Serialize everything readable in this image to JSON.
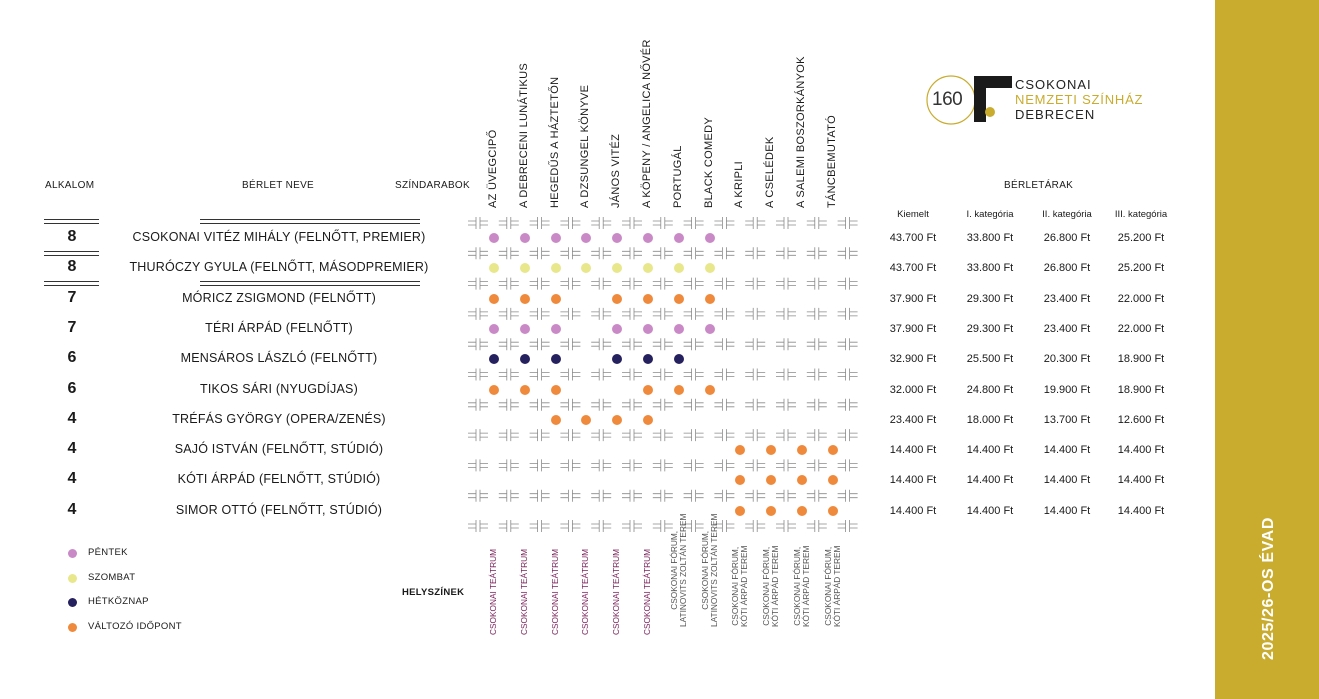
{
  "season": "2025/26-OS ÉVAD",
  "colors": {
    "friday": "#c989c6",
    "saturday": "#e8e78c",
    "weekday": "#25205e",
    "variable": "#ef8a3c",
    "venue_teatrum": "#7a1f5a",
    "venue_other": "#555555",
    "gold": "#c9ac2e"
  },
  "logo": {
    "number": "160",
    "line1": "CSOKONAI",
    "line2": "NEMZETI SZÍNHÁZ",
    "line3": "DEBRECEN"
  },
  "headers": {
    "alkalom": "ALKALOM",
    "berlet_neve": "BÉRLET NEVE",
    "szindarabok": "SZÍNDARABOK",
    "berletarak": "BÉRLETÁRAK",
    "helyszinek": "HELYSZÍNEK"
  },
  "price_categories": [
    "Kiemelt",
    "I. kategória",
    "II. kategória",
    "III. kategória"
  ],
  "plays": [
    {
      "title": "AZ ÜVEGCIPŐ",
      "venue": "CSOKONAI TEÁTRUM",
      "venue_type": "teatrum"
    },
    {
      "title": "A DEBRECENI LUNÁTIKUS",
      "venue": "CSOKONAI TEÁTRUM",
      "venue_type": "teatrum"
    },
    {
      "title": "HEGEDŰS A HÁZTETŐN",
      "venue": "CSOKONAI TEÁTRUM",
      "venue_type": "teatrum"
    },
    {
      "title": "A DZSUNGEL KÖNYVE",
      "venue": "CSOKONAI TEÁTRUM",
      "venue_type": "teatrum"
    },
    {
      "title": "JÁNOS VITÉZ",
      "venue": "CSOKONAI TEÁTRUM",
      "venue_type": "teatrum"
    },
    {
      "title": "A KÖPENY / ANGELICA NŐVÉR",
      "venue": "CSOKONAI TEÁTRUM",
      "venue_type": "teatrum"
    },
    {
      "title": "PORTUGÁL",
      "venue": "CSOKONAI FÓRUM,|LATINOVITS ZOLTÁN TEREM",
      "venue_type": "other"
    },
    {
      "title": "BLACK COMEDY",
      "venue": "CSOKONAI FÓRUM,|LATINOVITS ZOLTÁN TEREM",
      "venue_type": "other"
    },
    {
      "title": "A KRIPLI",
      "venue": "CSOKONAI FÓRUM,|KÓTI ÁRPÁD TEREM",
      "venue_type": "other"
    },
    {
      "title": "A CSELÉDEK",
      "venue": "CSOKONAI FÓRUM,|KÓTI ÁRPÁD TEREM",
      "venue_type": "other"
    },
    {
      "title": "A SALEMI BOSZORKÁNYOK",
      "venue": "CSOKONAI FÓRUM,|KÓTI ÁRPÁD TEREM",
      "venue_type": "other"
    },
    {
      "title": "TÁNCBEMUTATÓ",
      "venue": "CSOKONAI FÓRUM,|KÓTI ÁRPÁD TEREM",
      "venue_type": "other"
    }
  ],
  "rows": [
    {
      "count": "8",
      "name": "CSOKONAI VITÉZ MIHÁLY (FELNŐTT, PREMIER)",
      "prices": [
        "43.700 Ft",
        "33.800 Ft",
        "26.800 Ft",
        "25.200 Ft"
      ],
      "dot": "friday",
      "plays": [
        0,
        1,
        2,
        3,
        4,
        5,
        6,
        7
      ]
    },
    {
      "count": "8",
      "name": "THURÓCZY GYULA (FELNŐTT, MÁSODPREMIER)",
      "prices": [
        "43.700 Ft",
        "33.800 Ft",
        "26.800 Ft",
        "25.200 Ft"
      ],
      "dot": "saturday",
      "plays": [
        0,
        1,
        2,
        3,
        4,
        5,
        6,
        7
      ]
    },
    {
      "count": "7",
      "name": "MÓRICZ ZSIGMOND (FELNŐTT)",
      "prices": [
        "37.900 Ft",
        "29.300 Ft",
        "23.400 Ft",
        "22.000 Ft"
      ],
      "dot": "variable",
      "plays": [
        0,
        1,
        2,
        4,
        5,
        6,
        7
      ]
    },
    {
      "count": "7",
      "name": "TÉRI ÁRPÁD (FELNŐTT)",
      "prices": [
        "37.900 Ft",
        "29.300 Ft",
        "23.400 Ft",
        "22.000 Ft"
      ],
      "dot": "friday",
      "plays": [
        0,
        1,
        2,
        4,
        5,
        6,
        7
      ]
    },
    {
      "count": "6",
      "name": "MENSÁROS LÁSZLÓ (FELNŐTT)",
      "prices": [
        "32.900 Ft",
        "25.500 Ft",
        "20.300 Ft",
        "18.900 Ft"
      ],
      "dot": "weekday",
      "plays": [
        0,
        1,
        2,
        4,
        5,
        6
      ]
    },
    {
      "count": "6",
      "name": "TIKOS SÁRI (NYUGDÍJAS)",
      "prices": [
        "32.000 Ft",
        "24.800 Ft",
        "19.900 Ft",
        "18.900 Ft"
      ],
      "dot": "variable",
      "plays": [
        0,
        1,
        2,
        5,
        6,
        7
      ]
    },
    {
      "count": "4",
      "name": "TRÉFÁS GYÖRGY (OPERA/ZENÉS)",
      "prices": [
        "23.400 Ft",
        "18.000 Ft",
        "13.700 Ft",
        "12.600 Ft"
      ],
      "dot": "variable",
      "plays": [
        2,
        3,
        4,
        5
      ]
    },
    {
      "count": "4",
      "name": "SAJÓ ISTVÁN (FELNŐTT, STÚDIÓ)",
      "prices": [
        "14.400 Ft",
        "14.400 Ft",
        "14.400 Ft",
        "14.400 Ft"
      ],
      "dot": "variable",
      "plays": [
        8,
        9,
        10,
        11
      ]
    },
    {
      "count": "4",
      "name": "KÓTI ÁRPÁD (FELNŐTT, STÚDIÓ)",
      "prices": [
        "14.400 Ft",
        "14.400 Ft",
        "14.400 Ft",
        "14.400 Ft"
      ],
      "dot": "variable",
      "plays": [
        8,
        9,
        10,
        11
      ]
    },
    {
      "count": "4",
      "name": "SIMOR OTTÓ (FELNŐTT, STÚDIÓ)",
      "prices": [
        "14.400 Ft",
        "14.400 Ft",
        "14.400 Ft",
        "14.400 Ft"
      ],
      "dot": "variable",
      "plays": [
        8,
        9,
        10,
        11
      ]
    }
  ],
  "legend": [
    {
      "key": "friday",
      "label": "PÉNTEK"
    },
    {
      "key": "saturday",
      "label": "SZOMBAT"
    },
    {
      "key": "weekday",
      "label": "HÉTKÖZNAP"
    },
    {
      "key": "variable",
      "label": "VÁLTOZÓ IDŐPONT"
    }
  ]
}
